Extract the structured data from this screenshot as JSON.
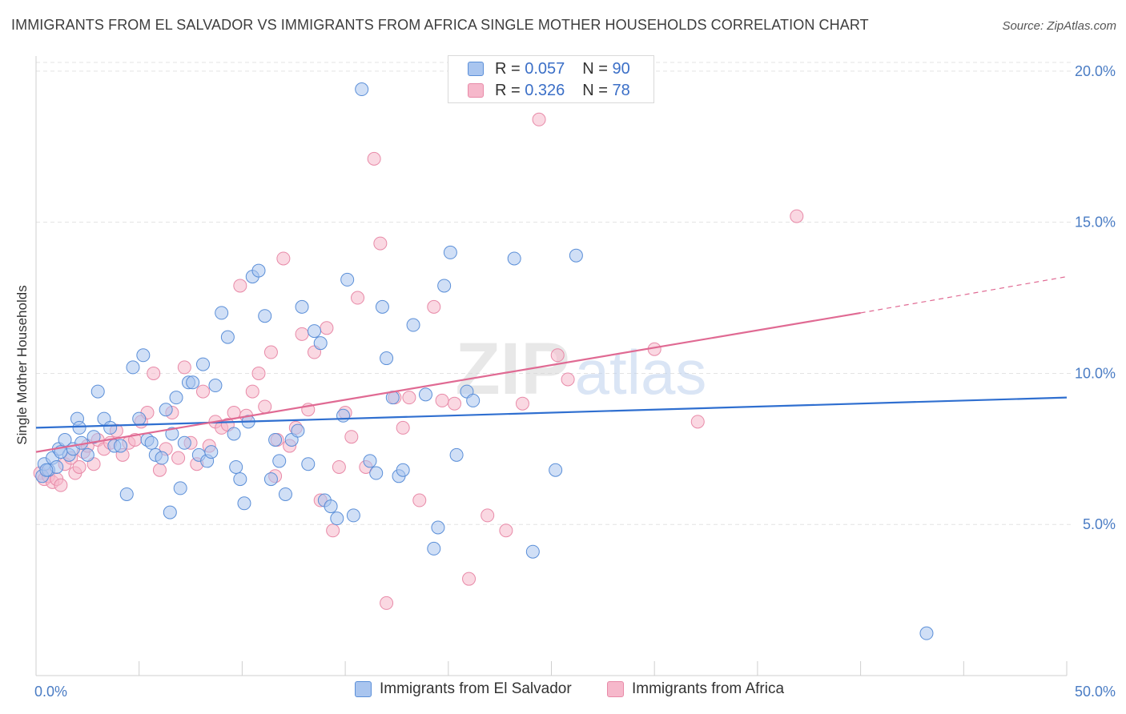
{
  "header": {
    "title": "IMMIGRANTS FROM EL SALVADOR VS IMMIGRANTS FROM AFRICA SINGLE MOTHER HOUSEHOLDS CORRELATION CHART",
    "source": "Source: ZipAtlas.com"
  },
  "legend_top": {
    "rows": [
      {
        "r_label": "R =",
        "r_value": "0.057",
        "n_label": "N =",
        "n_value": "90"
      },
      {
        "r_label": "R =",
        "r_value": "0.326",
        "n_label": "N =",
        "n_value": "78"
      }
    ]
  },
  "watermark": {
    "zip": "ZIP",
    "atlas": "atlas"
  },
  "colors": {
    "blue_fill": "#a9c5ef",
    "blue_stroke": "#5b8fd8",
    "blue_line": "#2f6fd0",
    "pink_fill": "#f6b8cb",
    "pink_stroke": "#e88aa8",
    "pink_line": "#e06a93",
    "axis_text": "#4a7cc4",
    "grid": "#e3e3e3"
  },
  "chart_data": {
    "type": "scatter",
    "title": "IMMIGRANTS FROM EL SALVADOR VS IMMIGRANTS FROM AFRICA SINGLE MOTHER HOUSEHOLDS CORRELATION CHART",
    "xlabel": "",
    "ylabel": "Single Mother Households",
    "xlim": [
      0,
      50
    ],
    "ylim": [
      0,
      20.5
    ],
    "x_tick_labels": [
      "0.0%",
      "50.0%"
    ],
    "y_ticks": [
      5,
      10,
      15,
      20
    ],
    "y_tick_labels": [
      "5.0%",
      "10.0%",
      "15.0%",
      "20.0%"
    ],
    "grid": true,
    "legend_position": "bottom",
    "series": [
      {
        "name": "Immigrants from El Salvador",
        "color": "#a9c5ef",
        "R": 0.057,
        "N": 90,
        "trend": {
          "x": [
            0,
            50
          ],
          "y": [
            8.2,
            9.2
          ],
          "style": "solid"
        },
        "points": [
          [
            0.3,
            6.6
          ],
          [
            0.4,
            7.0
          ],
          [
            0.6,
            6.8
          ],
          [
            0.8,
            7.2
          ],
          [
            1.0,
            6.9
          ],
          [
            1.1,
            7.5
          ],
          [
            1.4,
            7.8
          ],
          [
            1.6,
            7.3
          ],
          [
            1.8,
            7.5
          ],
          [
            2.0,
            8.5
          ],
          [
            2.1,
            8.2
          ],
          [
            2.2,
            7.7
          ],
          [
            2.5,
            7.3
          ],
          [
            2.8,
            7.9
          ],
          [
            3.0,
            9.4
          ],
          [
            3.3,
            8.5
          ],
          [
            3.6,
            8.2
          ],
          [
            3.8,
            7.6
          ],
          [
            4.1,
            7.6
          ],
          [
            4.4,
            6.0
          ],
          [
            4.7,
            10.2
          ],
          [
            5.0,
            8.5
          ],
          [
            5.2,
            10.6
          ],
          [
            5.4,
            7.8
          ],
          [
            5.6,
            7.7
          ],
          [
            5.8,
            7.3
          ],
          [
            6.1,
            7.2
          ],
          [
            6.3,
            8.8
          ],
          [
            6.5,
            5.4
          ],
          [
            6.6,
            8.0
          ],
          [
            6.8,
            9.2
          ],
          [
            7.0,
            6.2
          ],
          [
            7.2,
            7.7
          ],
          [
            7.4,
            9.7
          ],
          [
            7.6,
            9.7
          ],
          [
            7.9,
            7.3
          ],
          [
            8.1,
            10.3
          ],
          [
            8.3,
            7.1
          ],
          [
            8.5,
            7.4
          ],
          [
            8.7,
            9.6
          ],
          [
            9.0,
            12.0
          ],
          [
            9.3,
            11.2
          ],
          [
            9.6,
            8.0
          ],
          [
            9.7,
            6.9
          ],
          [
            9.9,
            6.5
          ],
          [
            10.1,
            5.7
          ],
          [
            10.3,
            8.4
          ],
          [
            10.5,
            13.2
          ],
          [
            10.8,
            13.4
          ],
          [
            11.1,
            11.9
          ],
          [
            11.4,
            6.5
          ],
          [
            11.6,
            7.8
          ],
          [
            11.8,
            7.1
          ],
          [
            12.1,
            6.0
          ],
          [
            12.4,
            7.8
          ],
          [
            12.7,
            8.1
          ],
          [
            12.9,
            12.2
          ],
          [
            13.2,
            7.0
          ],
          [
            13.5,
            11.4
          ],
          [
            13.8,
            11.0
          ],
          [
            14.0,
            5.8
          ],
          [
            14.3,
            5.6
          ],
          [
            14.6,
            5.2
          ],
          [
            14.9,
            8.6
          ],
          [
            15.1,
            13.1
          ],
          [
            15.4,
            5.3
          ],
          [
            15.8,
            19.4
          ],
          [
            16.2,
            7.1
          ],
          [
            16.5,
            6.7
          ],
          [
            16.8,
            12.2
          ],
          [
            17.0,
            10.5
          ],
          [
            17.3,
            9.2
          ],
          [
            17.6,
            6.6
          ],
          [
            17.8,
            6.8
          ],
          [
            18.3,
            11.6
          ],
          [
            18.9,
            9.3
          ],
          [
            19.3,
            4.2
          ],
          [
            19.5,
            4.9
          ],
          [
            19.8,
            12.9
          ],
          [
            20.1,
            14.0
          ],
          [
            20.4,
            7.3
          ],
          [
            20.9,
            9.4
          ],
          [
            21.2,
            9.1
          ],
          [
            23.2,
            13.8
          ],
          [
            24.1,
            4.1
          ],
          [
            25.2,
            6.8
          ],
          [
            26.2,
            13.9
          ],
          [
            43.2,
            1.4
          ],
          [
            0.5,
            6.8
          ],
          [
            1.2,
            7.4
          ]
        ]
      },
      {
        "name": "Immigrants from Africa",
        "color": "#f6b8cb",
        "R": 0.326,
        "N": 78,
        "trend": {
          "x": [
            0,
            40
          ],
          "y": [
            7.4,
            12.0
          ],
          "style": "solid",
          "dashed_to": [
            50,
            13.2
          ]
        },
        "points": [
          [
            0.2,
            6.7
          ],
          [
            0.4,
            6.5
          ],
          [
            0.6,
            6.6
          ],
          [
            0.8,
            6.4
          ],
          [
            1.0,
            6.5
          ],
          [
            1.2,
            6.3
          ],
          [
            1.4,
            7.0
          ],
          [
            1.7,
            7.2
          ],
          [
            1.9,
            6.7
          ],
          [
            2.1,
            6.9
          ],
          [
            2.3,
            7.4
          ],
          [
            2.5,
            7.6
          ],
          [
            2.8,
            7.0
          ],
          [
            3.0,
            7.8
          ],
          [
            3.3,
            7.5
          ],
          [
            3.6,
            7.7
          ],
          [
            3.9,
            8.1
          ],
          [
            4.2,
            7.3
          ],
          [
            4.5,
            7.7
          ],
          [
            4.8,
            7.8
          ],
          [
            5.1,
            8.4
          ],
          [
            5.4,
            8.7
          ],
          [
            5.7,
            10.0
          ],
          [
            6.0,
            6.8
          ],
          [
            6.3,
            7.5
          ],
          [
            6.6,
            8.7
          ],
          [
            6.9,
            7.2
          ],
          [
            7.2,
            10.2
          ],
          [
            7.5,
            7.7
          ],
          [
            7.8,
            7.0
          ],
          [
            8.1,
            9.4
          ],
          [
            8.4,
            7.6
          ],
          [
            8.7,
            8.4
          ],
          [
            9.0,
            8.2
          ],
          [
            9.3,
            8.3
          ],
          [
            9.6,
            8.7
          ],
          [
            9.9,
            12.9
          ],
          [
            10.2,
            8.6
          ],
          [
            10.5,
            9.4
          ],
          [
            10.8,
            10.0
          ],
          [
            11.1,
            8.9
          ],
          [
            11.4,
            10.7
          ],
          [
            11.7,
            7.8
          ],
          [
            12.0,
            13.8
          ],
          [
            12.3,
            7.6
          ],
          [
            12.6,
            8.2
          ],
          [
            12.9,
            11.3
          ],
          [
            13.2,
            8.8
          ],
          [
            13.5,
            10.7
          ],
          [
            13.8,
            5.8
          ],
          [
            14.1,
            11.5
          ],
          [
            14.4,
            4.8
          ],
          [
            14.7,
            6.9
          ],
          [
            15.0,
            8.7
          ],
          [
            15.3,
            7.9
          ],
          [
            15.6,
            12.5
          ],
          [
            16.0,
            6.9
          ],
          [
            16.4,
            17.1
          ],
          [
            16.7,
            14.3
          ],
          [
            17.0,
            2.4
          ],
          [
            17.4,
            9.2
          ],
          [
            17.8,
            8.2
          ],
          [
            18.1,
            9.2
          ],
          [
            18.6,
            5.8
          ],
          [
            19.3,
            12.2
          ],
          [
            19.7,
            9.1
          ],
          [
            20.3,
            9.0
          ],
          [
            21.0,
            3.2
          ],
          [
            21.9,
            5.3
          ],
          [
            22.8,
            4.8
          ],
          [
            23.6,
            9.0
          ],
          [
            24.4,
            18.4
          ],
          [
            25.3,
            10.6
          ],
          [
            25.8,
            9.8
          ],
          [
            30.0,
            10.8
          ],
          [
            32.1,
            8.4
          ],
          [
            36.9,
            15.2
          ],
          [
            11.6,
            6.6
          ]
        ]
      }
    ]
  },
  "legend_bottom": {
    "items": [
      {
        "label": "Immigrants from El Salvador"
      },
      {
        "label": "Immigrants from Africa"
      }
    ]
  }
}
